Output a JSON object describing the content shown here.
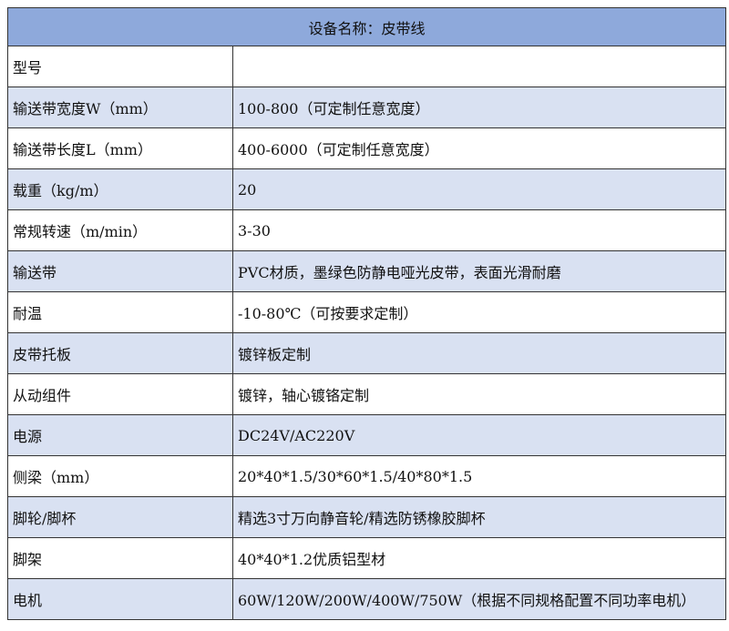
{
  "title": "设备名称：皮带线",
  "colors": {
    "header": "#8EA9DB",
    "stripe": "#D9E1F2"
  },
  "rows": [
    {
      "label": "型号",
      "value": ""
    },
    {
      "label": "输送带宽度W（mm）",
      "value": "100-800（可定制任意宽度）"
    },
    {
      "label": "输送带长度L（mm）",
      "value": "400-6000（可定制任意宽度）"
    },
    {
      "label": "载重（kg/m）",
      "value": "20"
    },
    {
      "label": "常规转速（m/min）",
      "value": "3-30"
    },
    {
      "label": "输送带",
      "value": "PVC材质，墨绿色防静电哑光皮带，表面光滑耐磨"
    },
    {
      "label": "耐温",
      "value": "-10-80℃（可按要求定制）"
    },
    {
      "label": "皮带托板",
      "value": "镀锌板定制"
    },
    {
      "label": "从动组件",
      "value": "镀锌，轴心镀铬定制"
    },
    {
      "label": "电源",
      "value": "DC24V/AC220V"
    },
    {
      "label": "侧梁（mm）",
      "value": "20*40*1.5/30*60*1.5/40*80*1.5"
    },
    {
      "label": "脚轮/脚杯",
      "value": "精选3寸万向静音轮/精选防锈橡胶脚杯"
    },
    {
      "label": "脚架",
      "value": "40*40*1.2优质铝型材"
    },
    {
      "label": "电机",
      "value": "60W/120W/200W/400W/750W（根据不同规格配置不同功率电机）"
    }
  ]
}
